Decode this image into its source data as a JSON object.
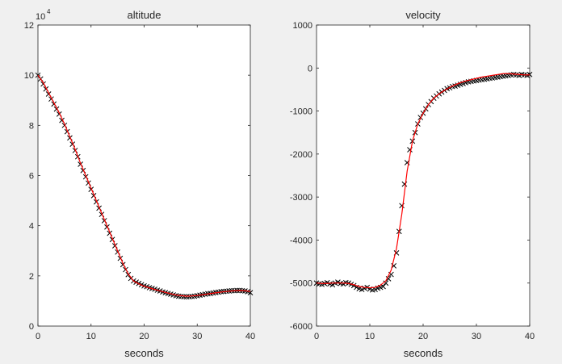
{
  "figure": {
    "background": "#f0f0f0"
  },
  "chart_data": [
    {
      "type": "scatter+line",
      "title": "altitude",
      "xlabel": "seconds",
      "ylabel": "",
      "xlim": [
        0,
        40
      ],
      "ylim": [
        0,
        120000
      ],
      "x_ticks": [
        0,
        10,
        20,
        30,
        40
      ],
      "x_tick_labels": [
        "0",
        "10",
        "20",
        "30",
        "40"
      ],
      "y_ticks": [
        0,
        20000,
        40000,
        60000,
        80000,
        100000,
        120000
      ],
      "y_tick_labels": [
        "0",
        "2",
        "4",
        "6",
        "8",
        "10",
        "12"
      ],
      "y_exponent": {
        "base": "10",
        "power": "4"
      },
      "grid": false,
      "series": [
        {
          "kind": "markers",
          "marker": "x",
          "color": "#000000",
          "x": [
            0,
            0.5,
            1,
            1.5,
            2,
            2.5,
            3,
            3.5,
            4,
            4.5,
            5,
            5.5,
            6,
            6.5,
            7,
            7.5,
            8,
            8.5,
            9,
            9.5,
            10,
            10.5,
            11,
            11.5,
            12,
            12.5,
            13,
            13.5,
            14,
            14.5,
            15,
            15.5,
            16,
            16.5,
            17,
            17.5,
            18,
            18.5,
            19,
            19.5,
            20,
            20.5,
            21,
            21.5,
            22,
            22.5,
            23,
            23.5,
            24,
            24.5,
            25,
            25.5,
            26,
            26.5,
            27,
            27.5,
            28,
            28.5,
            29,
            29.5,
            30,
            30.5,
            31,
            31.5,
            32,
            32.5,
            33,
            33.5,
            34,
            34.5,
            35,
            35.5,
            36,
            36.5,
            37,
            37.5,
            38,
            38.5,
            39,
            39.5,
            40
          ],
          "y": [
            100000,
            98500,
            96500,
            94500,
            92500,
            90500,
            88500,
            86500,
            84500,
            82000,
            80000,
            77500,
            75000,
            72500,
            70000,
            67500,
            64500,
            62000,
            59500,
            57000,
            54500,
            52000,
            49500,
            47000,
            44500,
            42000,
            39500,
            37000,
            34500,
            32000,
            29500,
            27000,
            24500,
            22500,
            20500,
            19000,
            18000,
            17500,
            17000,
            16500,
            16000,
            15700,
            15300,
            15000,
            14700,
            14300,
            14000,
            13600,
            13300,
            13000,
            12700,
            12400,
            12100,
            11900,
            11800,
            11700,
            11700,
            11700,
            11800,
            11900,
            12100,
            12300,
            12500,
            12700,
            12900,
            13000,
            13200,
            13400,
            13500,
            13700,
            13800,
            13900,
            14000,
            14100,
            14100,
            14200,
            14200,
            14100,
            14000,
            13700,
            13300
          ]
        },
        {
          "kind": "line",
          "color": "#ff0000",
          "x": [
            0,
            1,
            2,
            3,
            4,
            5,
            6,
            7,
            8,
            9,
            10,
            11,
            12,
            13,
            14,
            15,
            16,
            17,
            18,
            19,
            20,
            21,
            22,
            23,
            24,
            25,
            26,
            27,
            28,
            29,
            30,
            31,
            32,
            33,
            34,
            35,
            36,
            37,
            38,
            39,
            40
          ],
          "y": [
            100000,
            97000,
            93000,
            89000,
            85000,
            80500,
            75500,
            70500,
            65000,
            60000,
            55000,
            50000,
            45000,
            40000,
            35000,
            30000,
            25000,
            20800,
            18000,
            16800,
            15900,
            15200,
            14600,
            14000,
            13400,
            12900,
            12400,
            12100,
            11900,
            12000,
            12200,
            12500,
            12800,
            13100,
            13400,
            13700,
            13900,
            14100,
            14200,
            14100,
            13800
          ]
        }
      ]
    },
    {
      "type": "scatter+line",
      "title": "velocity",
      "xlabel": "seconds",
      "ylabel": "",
      "xlim": [
        0,
        40
      ],
      "ylim": [
        -6000,
        1000
      ],
      "x_ticks": [
        0,
        10,
        20,
        30,
        40
      ],
      "x_tick_labels": [
        "0",
        "10",
        "20",
        "30",
        "40"
      ],
      "y_ticks": [
        -6000,
        -5000,
        -4000,
        -3000,
        -2000,
        -1000,
        0,
        1000
      ],
      "y_tick_labels": [
        "-6000",
        "-5000",
        "-4000",
        "-3000",
        "-2000",
        "-1000",
        "0",
        "1000"
      ],
      "grid": false,
      "series": [
        {
          "kind": "markers",
          "marker": "x",
          "color": "#000000",
          "x": [
            0,
            0.5,
            1,
            1.5,
            2,
            2.5,
            3,
            3.5,
            4,
            4.5,
            5,
            5.5,
            6,
            6.5,
            7,
            7.5,
            8,
            8.5,
            9,
            9.5,
            10,
            10.5,
            11,
            11.5,
            12,
            12.5,
            13,
            13.5,
            14,
            14.5,
            15,
            15.5,
            16,
            16.5,
            17,
            17.5,
            18,
            18.5,
            19,
            19.5,
            20,
            20.5,
            21,
            21.5,
            22,
            22.5,
            23,
            23.5,
            24,
            24.5,
            25,
            25.5,
            26,
            26.5,
            27,
            27.5,
            28,
            28.5,
            29,
            29.5,
            30,
            30.5,
            31,
            31.5,
            32,
            32.5,
            33,
            33.5,
            34,
            34.5,
            35,
            35.5,
            36,
            36.5,
            37,
            37.5,
            38,
            38.5,
            39,
            39.5,
            40
          ],
          "y": [
            -5000,
            -5020,
            -5030,
            -5010,
            -4990,
            -5020,
            -5040,
            -5000,
            -4980,
            -5010,
            -5020,
            -4990,
            -5000,
            -5030,
            -5060,
            -5100,
            -5130,
            -5150,
            -5120,
            -5100,
            -5140,
            -5160,
            -5150,
            -5120,
            -5100,
            -5080,
            -5000,
            -4900,
            -4800,
            -4600,
            -4300,
            -3800,
            -3200,
            -2700,
            -2200,
            -1900,
            -1700,
            -1500,
            -1300,
            -1150,
            -1050,
            -950,
            -850,
            -780,
            -700,
            -650,
            -600,
            -560,
            -520,
            -480,
            -460,
            -430,
            -420,
            -400,
            -380,
            -360,
            -340,
            -320,
            -310,
            -300,
            -290,
            -280,
            -270,
            -260,
            -250,
            -240,
            -230,
            -220,
            -210,
            -200,
            -190,
            -180,
            -170,
            -160,
            -150,
            -160,
            -170,
            -150,
            -160,
            -170,
            -150
          ]
        },
        {
          "kind": "line",
          "color": "#ff0000",
          "x": [
            0,
            1,
            2,
            3,
            4,
            5,
            6,
            7,
            8,
            9,
            10,
            11,
            12,
            13,
            14,
            15,
            16,
            17,
            18,
            19,
            20,
            21,
            22,
            23,
            24,
            25,
            26,
            27,
            28,
            29,
            30,
            31,
            32,
            33,
            34,
            35,
            36,
            37,
            38,
            39,
            40
          ],
          "y": [
            -5000,
            -5010,
            -5010,
            -5000,
            -5000,
            -5000,
            -5010,
            -5040,
            -5080,
            -5100,
            -5110,
            -5100,
            -5050,
            -4950,
            -4700,
            -4200,
            -3400,
            -2400,
            -1700,
            -1300,
            -1050,
            -850,
            -700,
            -600,
            -520,
            -450,
            -390,
            -340,
            -300,
            -270,
            -240,
            -210,
            -190,
            -170,
            -150,
            -130,
            -130,
            -140,
            -150,
            -160,
            -160
          ]
        }
      ]
    }
  ]
}
